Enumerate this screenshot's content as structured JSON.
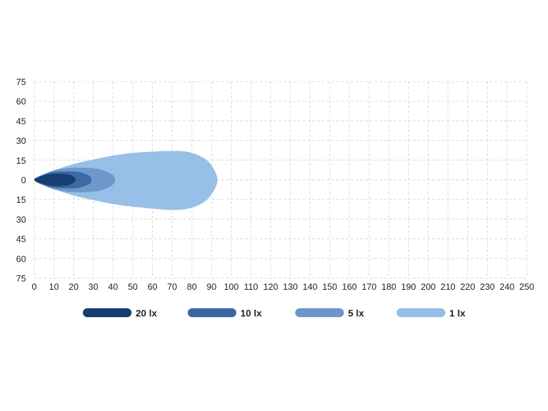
{
  "chart_data": {
    "type": "area",
    "title": "",
    "xlabel": "",
    "ylabel": "",
    "xlim": [
      0,
      250
    ],
    "ylim": [
      -75,
      75
    ],
    "x_ticks": [
      "0",
      "10",
      "20",
      "30",
      "40",
      "50",
      "60",
      "70",
      "80",
      "90",
      "100",
      "110",
      "120",
      "130",
      "140",
      "150",
      "160",
      "170",
      "180",
      "190",
      "200",
      "210",
      "220",
      "230",
      "240",
      "250"
    ],
    "y_ticks": [
      "75",
      "60",
      "45",
      "30",
      "15",
      "0",
      "15",
      "30",
      "45",
      "60",
      "75"
    ],
    "grid": true,
    "legend_position": "bottom",
    "series": [
      {
        "name": "1 lx",
        "color": "#95bde6",
        "contour": [
          [
            0,
            0
          ],
          [
            10,
            7
          ],
          [
            20,
            12
          ],
          [
            30,
            15.5
          ],
          [
            40,
            18.5
          ],
          [
            50,
            20.5
          ],
          [
            60,
            21.5
          ],
          [
            70,
            22
          ],
          [
            78,
            21.3
          ],
          [
            85,
            17.5
          ],
          [
            90,
            11
          ],
          [
            93,
            0
          ],
          [
            90,
            -11
          ],
          [
            85,
            -18
          ],
          [
            78,
            -22
          ],
          [
            70,
            -23
          ],
          [
            60,
            -22
          ],
          [
            50,
            -20.5
          ],
          [
            40,
            -18.5
          ],
          [
            30,
            -15.5
          ],
          [
            20,
            -12
          ],
          [
            10,
            -7
          ]
        ]
      },
      {
        "name": "5 lx",
        "color": "#6d97c8",
        "contour": [
          [
            0,
            0
          ],
          [
            6,
            5
          ],
          [
            12,
            8
          ],
          [
            20,
            9.2
          ],
          [
            28,
            9
          ],
          [
            35,
            7.2
          ],
          [
            40,
            3.5
          ],
          [
            41,
            0
          ],
          [
            40,
            -3.5
          ],
          [
            35,
            -7.5
          ],
          [
            28,
            -9.3
          ],
          [
            20,
            -9.5
          ],
          [
            12,
            -8
          ],
          [
            6,
            -5
          ]
        ]
      },
      {
        "name": "10 lx",
        "color": "#3d67a3",
        "contour": [
          [
            0,
            0
          ],
          [
            5,
            4
          ],
          [
            10,
            6
          ],
          [
            17,
            6.4
          ],
          [
            23,
            5.8
          ],
          [
            28,
            3
          ],
          [
            29,
            0
          ],
          [
            28,
            -3
          ],
          [
            23,
            -6
          ],
          [
            17,
            -6.6
          ],
          [
            10,
            -6
          ],
          [
            5,
            -4
          ]
        ]
      },
      {
        "name": "20 lx",
        "color": "#163d73",
        "contour": [
          [
            0,
            0
          ],
          [
            4,
            3
          ],
          [
            9,
            4.6
          ],
          [
            15,
            4.6
          ],
          [
            19,
            3.2
          ],
          [
            21,
            0
          ],
          [
            19,
            -3.2
          ],
          [
            15,
            -4.7
          ],
          [
            9,
            -4.7
          ],
          [
            4,
            -3
          ]
        ]
      }
    ],
    "legend": [
      {
        "label": "20 lx",
        "color": "#163d73"
      },
      {
        "label": "10 lx",
        "color": "#3d67a3"
      },
      {
        "label": "5 lx",
        "color": "#6d97c8"
      },
      {
        "label": "1 lx",
        "color": "#95bde6"
      }
    ]
  }
}
